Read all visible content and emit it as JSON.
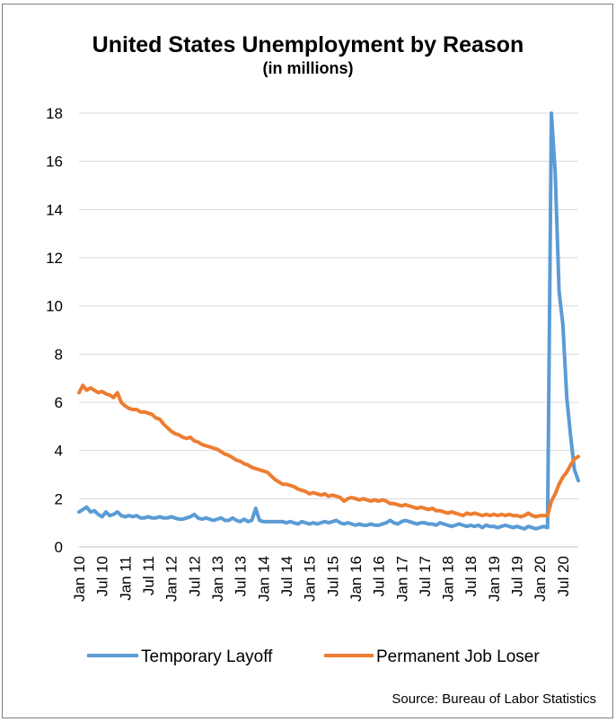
{
  "chart_data": {
    "type": "line",
    "title": "United States Unemployment by Reason",
    "subtitle": "(in millions)",
    "source": "Source: Bureau of Labor Statistics",
    "ylim": [
      0,
      18
    ],
    "y_ticks": [
      "0",
      "2",
      "4",
      "6",
      "8",
      "10",
      "12",
      "14",
      "16",
      "18"
    ],
    "x_ticks": [
      "Jan 10",
      "Jul 10",
      "Jan 11",
      "Jul 11",
      "Jan 12",
      "Jul 12",
      "Jan 13",
      "Jul 13",
      "Jan 14",
      "Jul 14",
      "Jan 15",
      "Jul 15",
      "Jan 16",
      "Jul 16",
      "Jan 17",
      "Jul 17",
      "Jan 18",
      "Jul 18",
      "Jan 19",
      "Jul 19",
      "Jan 20",
      "Jul 20"
    ],
    "x_start": "2010-01",
    "x_end": "2020-11",
    "grid": true,
    "legend_position": "bottom",
    "series": [
      {
        "name": "Temporary Layoff",
        "color": "#5b9bd5",
        "values": [
          1.45,
          1.55,
          1.65,
          1.45,
          1.5,
          1.35,
          1.25,
          1.45,
          1.3,
          1.35,
          1.45,
          1.3,
          1.25,
          1.3,
          1.25,
          1.3,
          1.2,
          1.2,
          1.25,
          1.2,
          1.2,
          1.25,
          1.2,
          1.2,
          1.25,
          1.2,
          1.15,
          1.15,
          1.2,
          1.25,
          1.35,
          1.2,
          1.15,
          1.2,
          1.15,
          1.1,
          1.15,
          1.2,
          1.1,
          1.1,
          1.2,
          1.1,
          1.05,
          1.15,
          1.05,
          1.1,
          1.6,
          1.1,
          1.05,
          1.05,
          1.05,
          1.05,
          1.05,
          1.05,
          1.0,
          1.05,
          1.0,
          0.95,
          1.05,
          1.0,
          0.95,
          1.0,
          0.95,
          1.0,
          1.05,
          1.0,
          1.05,
          1.1,
          1.0,
          0.95,
          1.0,
          0.95,
          0.9,
          0.95,
          0.9,
          0.9,
          0.95,
          0.9,
          0.9,
          0.95,
          1.0,
          1.1,
          1.0,
          0.95,
          1.05,
          1.1,
          1.05,
          1.0,
          0.95,
          1.0,
          1.0,
          0.95,
          0.95,
          0.9,
          1.0,
          0.95,
          0.9,
          0.85,
          0.9,
          0.95,
          0.9,
          0.85,
          0.9,
          0.85,
          0.9,
          0.8,
          0.9,
          0.85,
          0.85,
          0.8,
          0.85,
          0.9,
          0.85,
          0.8,
          0.85,
          0.8,
          0.75,
          0.85,
          0.8,
          0.75,
          0.8,
          0.85,
          0.8,
          18.0,
          15.5,
          10.6,
          9.2,
          6.2,
          4.6,
          3.2,
          2.75
        ]
      },
      {
        "name": "Permanent Job Loser",
        "color": "#ed7d31",
        "values": [
          6.4,
          6.7,
          6.5,
          6.6,
          6.5,
          6.4,
          6.45,
          6.35,
          6.3,
          6.2,
          6.4,
          6.0,
          5.85,
          5.75,
          5.7,
          5.7,
          5.6,
          5.6,
          5.55,
          5.5,
          5.35,
          5.3,
          5.1,
          4.95,
          4.8,
          4.7,
          4.65,
          4.55,
          4.5,
          4.55,
          4.4,
          4.35,
          4.25,
          4.2,
          4.15,
          4.1,
          4.05,
          3.95,
          3.85,
          3.8,
          3.7,
          3.6,
          3.55,
          3.45,
          3.4,
          3.3,
          3.25,
          3.2,
          3.15,
          3.1,
          2.95,
          2.8,
          2.7,
          2.6,
          2.6,
          2.55,
          2.5,
          2.4,
          2.35,
          2.3,
          2.2,
          2.25,
          2.2,
          2.15,
          2.2,
          2.1,
          2.15,
          2.1,
          2.05,
          1.9,
          2.0,
          2.05,
          2.0,
          1.95,
          2.0,
          1.95,
          1.9,
          1.95,
          1.9,
          1.95,
          1.9,
          1.8,
          1.8,
          1.75,
          1.7,
          1.75,
          1.7,
          1.65,
          1.6,
          1.65,
          1.6,
          1.55,
          1.6,
          1.5,
          1.5,
          1.45,
          1.4,
          1.45,
          1.4,
          1.35,
          1.3,
          1.4,
          1.35,
          1.4,
          1.35,
          1.3,
          1.35,
          1.3,
          1.35,
          1.3,
          1.35,
          1.3,
          1.35,
          1.3,
          1.3,
          1.25,
          1.3,
          1.4,
          1.3,
          1.25,
          1.3,
          1.3,
          1.3,
          1.9,
          2.2,
          2.6,
          2.9,
          3.1,
          3.4,
          3.65,
          3.75
        ]
      }
    ]
  }
}
